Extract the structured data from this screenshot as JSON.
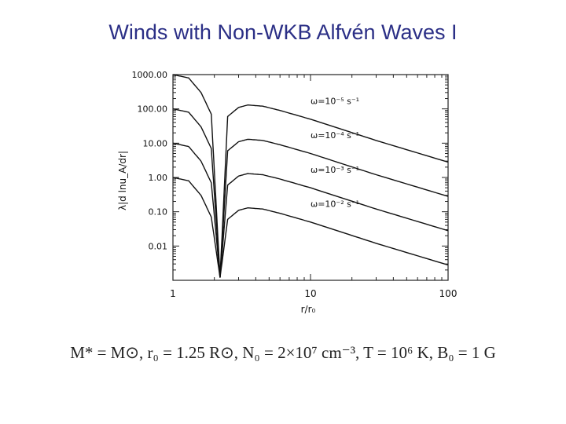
{
  "slide": {
    "title": "Winds with Non-WKB Alfvén Waves I",
    "caption": "M* = M⊙, r₀ = 1.25 R⊙, N₀ = 2×10⁷ cm⁻³, T = 10⁶ K, B₀ = 1 G"
  },
  "chart_data": {
    "type": "line",
    "xlabel": "r/r₀",
    "ylabel": "λ|d lnu_A/dr|",
    "xscale": "log",
    "yscale": "log",
    "xlim": [
      1,
      100
    ],
    "ylim": [
      0.001,
      1000
    ],
    "x_ticks": [
      "1",
      "10",
      "100"
    ],
    "y_ticks": [
      "1000.00",
      "100.00",
      "10.00",
      "1.00",
      "0.10",
      "0.01"
    ],
    "grid": false,
    "series": [
      {
        "name": "ω=10⁻⁵ s⁻¹",
        "x": [
          1.0,
          1.3,
          1.6,
          1.9,
          2.2,
          2.5,
          3.0,
          3.5,
          4.5,
          6.0,
          10.0,
          30.0,
          100.0
        ],
        "y": [
          1000,
          800,
          300,
          70,
          0.0012,
          60,
          110,
          130,
          120,
          90,
          50,
          12,
          2.8
        ]
      },
      {
        "name": "ω=10⁻⁴ s⁻¹",
        "x": [
          1.0,
          1.3,
          1.6,
          1.9,
          2.2,
          2.5,
          3.0,
          3.5,
          4.5,
          6.0,
          10.0,
          30.0,
          100.0
        ],
        "y": [
          100,
          80,
          30,
          7,
          0.0012,
          6,
          11,
          13,
          12,
          9,
          5,
          1.2,
          0.28
        ]
      },
      {
        "name": "ω=10⁻³ s⁻¹",
        "x": [
          1.0,
          1.3,
          1.6,
          1.9,
          2.2,
          2.5,
          3.0,
          3.5,
          4.5,
          6.0,
          10.0,
          30.0,
          100.0
        ],
        "y": [
          10,
          8,
          3,
          0.7,
          0.0012,
          0.6,
          1.1,
          1.3,
          1.2,
          0.9,
          0.5,
          0.12,
          0.028
        ]
      },
      {
        "name": "ω=10⁻² s⁻¹",
        "x": [
          1.0,
          1.3,
          1.6,
          1.9,
          2.2,
          2.5,
          3.0,
          3.5,
          4.5,
          6.0,
          10.0,
          30.0,
          100.0
        ],
        "y": [
          1,
          0.8,
          0.3,
          0.07,
          0.0012,
          0.06,
          0.11,
          0.13,
          0.12,
          0.09,
          0.05,
          0.012,
          0.0028
        ]
      }
    ],
    "annotations": [
      {
        "text": "ω=10⁻⁵ s⁻¹",
        "series": 0
      },
      {
        "text": "ω=10⁻⁴ s⁻¹",
        "series": 1
      },
      {
        "text": "ω=10⁻³ s⁻¹",
        "series": 2
      },
      {
        "text": "ω=10⁻² s⁻¹",
        "series": 3
      }
    ]
  }
}
